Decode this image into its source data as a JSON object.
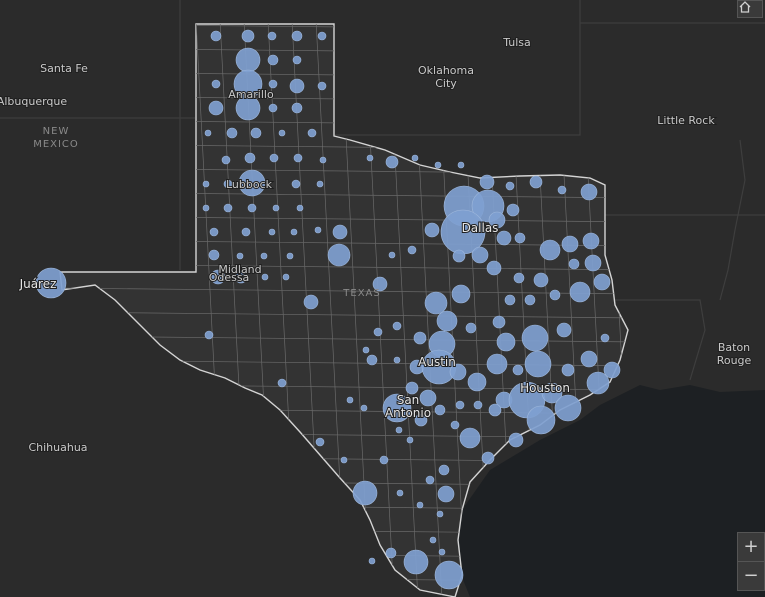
{
  "map": {
    "colors": {
      "land": "#2f2f2f",
      "water": "#1d2023",
      "border": "#cfcfcf",
      "bubble_fill": "#7f9fd0",
      "bubble_stroke": "#9fb8dc"
    },
    "labels": [
      {
        "text": "Tulsa",
        "major": false
      },
      {
        "text": "Oklahoma City",
        "major": false
      },
      {
        "text": "Santa Fe",
        "major": false
      },
      {
        "text": "Albuquerque",
        "major": false
      },
      {
        "text": "NEW MEXICO",
        "region": true
      },
      {
        "text": "Little Rock",
        "major": false
      },
      {
        "text": "Amarillo",
        "major": false
      },
      {
        "text": "Lubbock",
        "major": false
      },
      {
        "text": "Midland",
        "major": false
      },
      {
        "text": "Odessa",
        "major": false
      },
      {
        "text": "Dallas",
        "major": true
      },
      {
        "text": "Juárez",
        "major": true
      },
      {
        "text": "Austin",
        "major": true
      },
      {
        "text": "San Antonio",
        "major": true
      },
      {
        "text": "Houston",
        "major": true
      },
      {
        "text": "Baton Rouge",
        "major": false
      },
      {
        "text": "Chihuahua",
        "major": false
      },
      {
        "text": "TEXAS",
        "region": true
      }
    ]
  },
  "controls": {
    "home_icon": "home-icon",
    "zoom_in": "+",
    "zoom_out": "−"
  }
}
